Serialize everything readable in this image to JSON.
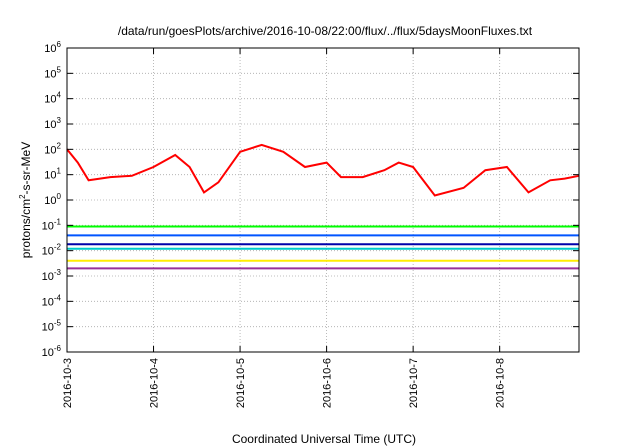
{
  "chart_data": {
    "type": "line",
    "title": "/data/run/goesPlots/archive/2016-10-08/22:00/flux/../flux/5daysMoonFluxes.txt",
    "xlabel": "Coordinated Universal Time (UTC)",
    "ylabel": {
      "base": "protons/cm",
      "sup": "2",
      "rest": "-s-sr-MeV"
    },
    "yscale": "log",
    "ylim_exponent": [
      -6,
      6
    ],
    "y_tick_base": "10",
    "y_tick_exponents": [
      "-6",
      "-5",
      "-4",
      "-3",
      "-2",
      "-1",
      "0",
      "1",
      "2",
      "3",
      "4",
      "5",
      "6"
    ],
    "x_range_days": [
      "2016-10-03",
      "2016-10-08 22:00"
    ],
    "x_ticks": [
      "2016-10-3",
      "2016-10-4",
      "2016-10-5",
      "2016-10-6",
      "2016-10-7",
      "2016-10-8"
    ],
    "grid": true,
    "series": [
      {
        "color": "#ff0000",
        "values": [
          {
            "x": "2016-10-03 00:00",
            "y": 100
          },
          {
            "x": "2016-10-03 03:00",
            "y": 30
          },
          {
            "x": "2016-10-03 06:00",
            "y": 6
          },
          {
            "x": "2016-10-03 12:00",
            "y": 8
          },
          {
            "x": "2016-10-03 18:00",
            "y": 9
          },
          {
            "x": "2016-10-04 00:00",
            "y": 20
          },
          {
            "x": "2016-10-04 06:00",
            "y": 60
          },
          {
            "x": "2016-10-04 10:00",
            "y": 20
          },
          {
            "x": "2016-10-04 14:00",
            "y": 2
          },
          {
            "x": "2016-10-04 18:00",
            "y": 5
          },
          {
            "x": "2016-10-05 00:00",
            "y": 80
          },
          {
            "x": "2016-10-05 06:00",
            "y": 150
          },
          {
            "x": "2016-10-05 12:00",
            "y": 80
          },
          {
            "x": "2016-10-05 18:00",
            "y": 20
          },
          {
            "x": "2016-10-06 00:00",
            "y": 30
          },
          {
            "x": "2016-10-06 04:00",
            "y": 8
          },
          {
            "x": "2016-10-06 10:00",
            "y": 8
          },
          {
            "x": "2016-10-06 16:00",
            "y": 15
          },
          {
            "x": "2016-10-06 20:00",
            "y": 30
          },
          {
            "x": "2016-10-07 00:00",
            "y": 20
          },
          {
            "x": "2016-10-07 06:00",
            "y": 1.5
          },
          {
            "x": "2016-10-07 14:00",
            "y": 3
          },
          {
            "x": "2016-10-07 20:00",
            "y": 15
          },
          {
            "x": "2016-10-08 02:00",
            "y": 20
          },
          {
            "x": "2016-10-08 08:00",
            "y": 2
          },
          {
            "x": "2016-10-08 14:00",
            "y": 6
          },
          {
            "x": "2016-10-08 18:00",
            "y": 7
          },
          {
            "x": "2016-10-08 22:00",
            "y": 9
          }
        ]
      },
      {
        "color": "#00ff00",
        "values": [
          {
            "x": "2016-10-03 00:00",
            "y": 0.09
          },
          {
            "x": "2016-10-04 00:00",
            "y": 0.09
          },
          {
            "x": "2016-10-05 00:00",
            "y": 0.09
          },
          {
            "x": "2016-10-06 00:00",
            "y": 0.09
          },
          {
            "x": "2016-10-07 00:00",
            "y": 0.09
          },
          {
            "x": "2016-10-08 00:00",
            "y": 0.09
          },
          {
            "x": "2016-10-08 22:00",
            "y": 0.09
          }
        ]
      },
      {
        "color": "#0055ff",
        "values": [
          {
            "x": "2016-10-03 00:00",
            "y": 0.04
          },
          {
            "x": "2016-10-04 00:00",
            "y": 0.04
          },
          {
            "x": "2016-10-05 00:00",
            "y": 0.04
          },
          {
            "x": "2016-10-06 00:00",
            "y": 0.04
          },
          {
            "x": "2016-10-07 00:00",
            "y": 0.04
          },
          {
            "x": "2016-10-08 00:00",
            "y": 0.04
          },
          {
            "x": "2016-10-08 22:00",
            "y": 0.04
          }
        ]
      },
      {
        "color": "#00cccc",
        "values": [
          {
            "x": "2016-10-03 00:00",
            "y": 0.012
          },
          {
            "x": "2016-10-04 00:00",
            "y": 0.012
          },
          {
            "x": "2016-10-05 00:00",
            "y": 0.012
          },
          {
            "x": "2016-10-06 00:00",
            "y": 0.012
          },
          {
            "x": "2016-10-07 00:00",
            "y": 0.012
          },
          {
            "x": "2016-10-08 00:00",
            "y": 0.012
          },
          {
            "x": "2016-10-08 22:00",
            "y": 0.012
          }
        ]
      },
      {
        "color": "#0000aa",
        "values": [
          {
            "x": "2016-10-03 00:00",
            "y": 0.018
          },
          {
            "x": "2016-10-04 00:00",
            "y": 0.018
          },
          {
            "x": "2016-10-05 00:00",
            "y": 0.018
          },
          {
            "x": "2016-10-06 00:00",
            "y": 0.018
          },
          {
            "x": "2016-10-07 00:00",
            "y": 0.018
          },
          {
            "x": "2016-10-08 00:00",
            "y": 0.018
          },
          {
            "x": "2016-10-08 22:00",
            "y": 0.018
          }
        ]
      },
      {
        "color": "#ffee00",
        "values": [
          {
            "x": "2016-10-03 00:00",
            "y": 0.004
          },
          {
            "x": "2016-10-08 22:00",
            "y": 0.004
          }
        ]
      },
      {
        "color": "#993399",
        "values": [
          {
            "x": "2016-10-03 00:00",
            "y": 0.002
          },
          {
            "x": "2016-10-04 00:00",
            "y": 0.002
          },
          {
            "x": "2016-10-05 00:00",
            "y": 0.002
          },
          {
            "x": "2016-10-06 00:00",
            "y": 0.002
          },
          {
            "x": "2016-10-07 00:00",
            "y": 0.002
          },
          {
            "x": "2016-10-08 00:00",
            "y": 0.002
          },
          {
            "x": "2016-10-08 22:00",
            "y": 0.002
          }
        ]
      }
    ]
  }
}
